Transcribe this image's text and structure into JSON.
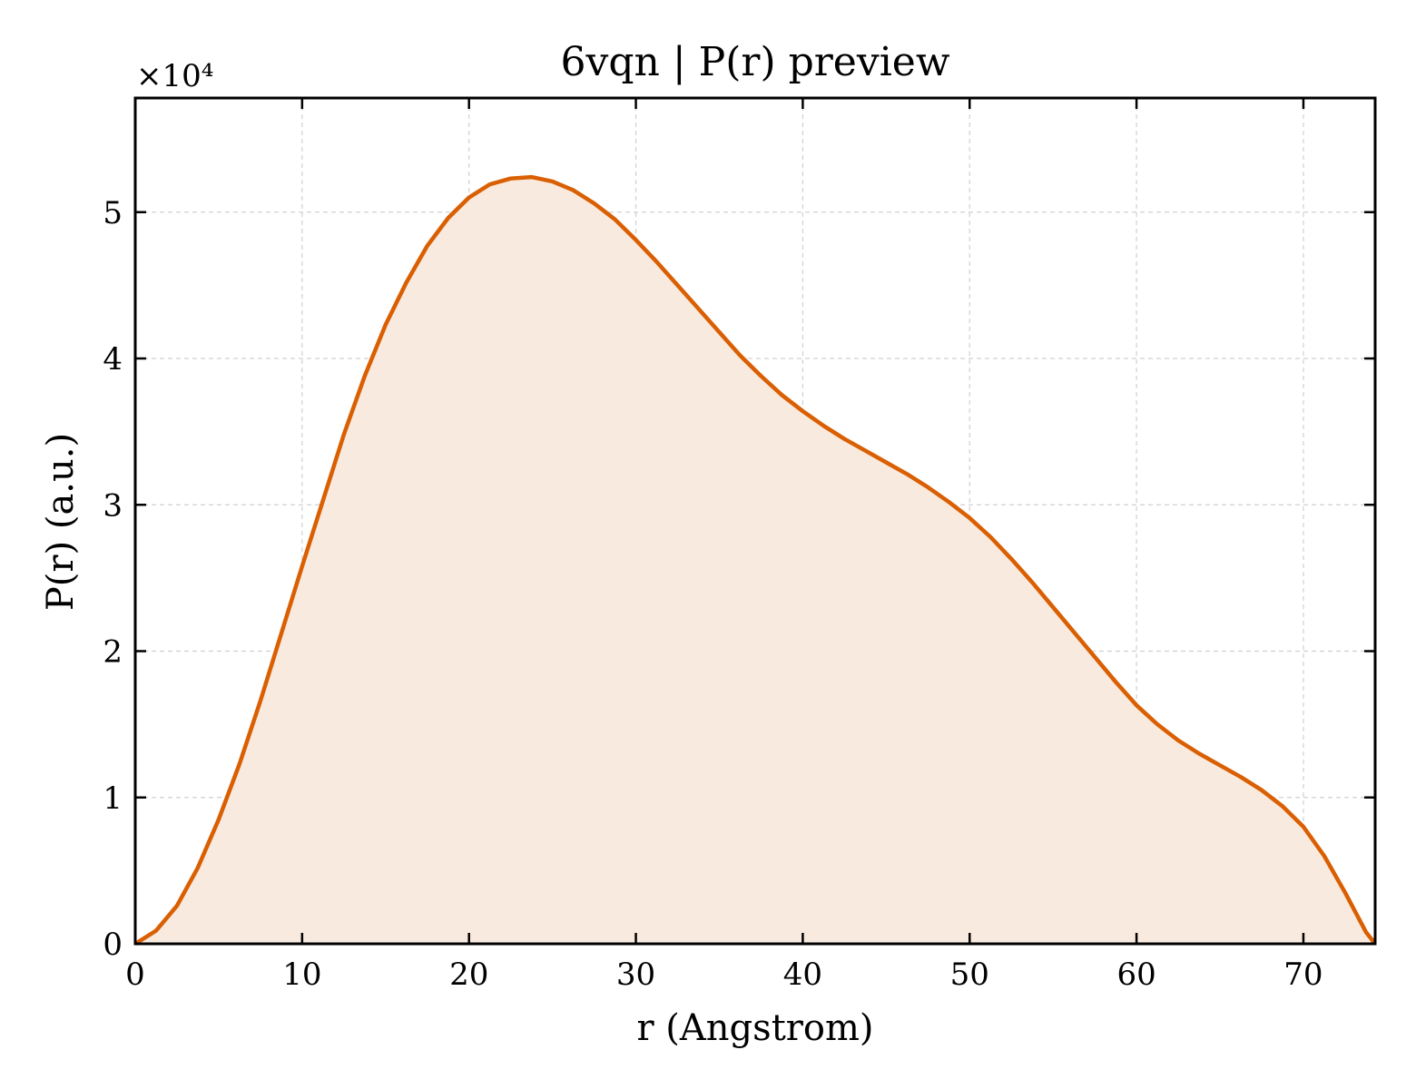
{
  "chart_data": {
    "type": "area",
    "title": "6vqn | P(r) preview",
    "xlabel": "r (Angstrom)",
    "ylabel": "P(r) (a.u.)",
    "y_multiplier": "×10⁴",
    "xlim": [
      0,
      74.3
    ],
    "ylim": [
      0,
      5.78
    ],
    "y_scale_factor": 10000,
    "xticks": [
      0,
      10,
      20,
      30,
      40,
      50,
      60,
      70
    ],
    "yticks": [
      0,
      1,
      2,
      3,
      4,
      5
    ],
    "grid": true,
    "line_color": "#d95f02",
    "fill_color": "#f9eadf",
    "series": [
      {
        "x": [
          0,
          1.25,
          2.5,
          3.75,
          5.0,
          6.25,
          7.5,
          8.75,
          10.0,
          11.25,
          12.5,
          13.75,
          15.0,
          16.25,
          17.5,
          18.75,
          20.0,
          21.25,
          22.5,
          23.75,
          25.0,
          26.25,
          27.5,
          28.75,
          30.0,
          31.25,
          32.5,
          33.75,
          35.0,
          36.25,
          37.5,
          38.75,
          40.0,
          41.25,
          42.5,
          43.75,
          45.0,
          46.25,
          47.5,
          48.75,
          50.0,
          51.25,
          52.5,
          53.75,
          55.0,
          56.25,
          57.5,
          58.75,
          60.0,
          61.25,
          62.5,
          63.75,
          65.0,
          66.25,
          67.5,
          68.75,
          70.0,
          71.25,
          72.5,
          73.75,
          74.3
        ],
        "y": [
          0.0,
          0.09,
          0.26,
          0.52,
          0.85,
          1.23,
          1.66,
          2.12,
          2.58,
          3.03,
          3.48,
          3.88,
          4.23,
          4.52,
          4.77,
          4.96,
          5.1,
          5.19,
          5.23,
          5.24,
          5.21,
          5.15,
          5.06,
          4.95,
          4.81,
          4.66,
          4.5,
          4.34,
          4.18,
          4.02,
          3.88,
          3.75,
          3.64,
          3.54,
          3.45,
          3.37,
          3.29,
          3.21,
          3.12,
          3.02,
          2.91,
          2.78,
          2.63,
          2.47,
          2.3,
          2.13,
          1.96,
          1.79,
          1.63,
          1.5,
          1.39,
          1.3,
          1.22,
          1.14,
          1.05,
          0.94,
          0.8,
          0.6,
          0.35,
          0.08,
          0.0
        ]
      }
    ]
  }
}
